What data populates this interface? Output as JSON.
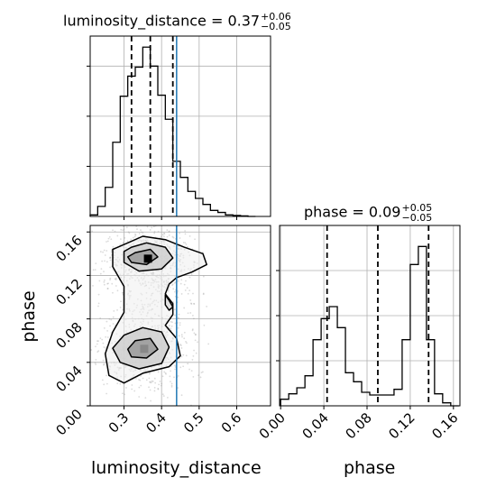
{
  "titles": {
    "lum": {
      "main": "luminosity_distance = 0.37",
      "up": "+0.06",
      "down": "−0.05"
    },
    "phase": {
      "main": "phase = 0.09",
      "up": "+0.05",
      "down": "−0.05"
    }
  },
  "labels": {
    "x_left": "luminosity_distance",
    "x_right": "phase",
    "y_left": "phase"
  },
  "colors": {
    "truth": "#1f77b4",
    "line": "#000000",
    "grid": "#b0b0b0",
    "density": "#999999"
  },
  "chart_data": [
    {
      "type": "histogram",
      "name": "luminosity_distance marginal",
      "x_range": [
        0.21,
        0.69
      ],
      "bin_edges": [
        0.21,
        0.23,
        0.25,
        0.27,
        0.29,
        0.31,
        0.33,
        0.35,
        0.37,
        0.39,
        0.41,
        0.43,
        0.45,
        0.47,
        0.49,
        0.51,
        0.53,
        0.55,
        0.57,
        0.59,
        0.61,
        0.63,
        0.65
      ],
      "counts": [
        0.3,
        2.0,
        5.8,
        14.8,
        24.0,
        28.0,
        29.8,
        33.8,
        30.0,
        24.2,
        19.4,
        11.0,
        7.8,
        5.0,
        3.6,
        2.4,
        1.2,
        0.8,
        0.3,
        0.2,
        0.1,
        0
      ],
      "ymax": 36,
      "median": 0.37,
      "quantiles": [
        0.32,
        0.37,
        0.43
      ],
      "truth": 0.44,
      "xticks": [
        0.3,
        0.4,
        0.5,
        0.6
      ]
    },
    {
      "type": "histogram",
      "name": "phase marginal",
      "x_range": [
        -0.001,
        0.166
      ],
      "bin_edges": [
        0.0,
        0.0075,
        0.015,
        0.0225,
        0.03,
        0.0375,
        0.045,
        0.0525,
        0.06,
        0.0675,
        0.075,
        0.0825,
        0.09,
        0.0975,
        0.105,
        0.1125,
        0.12,
        0.1275,
        0.135,
        0.1425,
        0.15,
        0.1575,
        0.165
      ],
      "counts": [
        2.2,
        4.0,
        6.0,
        10.0,
        22.0,
        29.0,
        33.0,
        26.0,
        11.0,
        8.0,
        4.5,
        3.6,
        3.6,
        3.6,
        5.5,
        22.0,
        47.0,
        53.0,
        22.0,
        4.0,
        1.0,
        0
      ],
      "ymax": 60,
      "median": 0.09,
      "quantiles": [
        0.043,
        0.09,
        0.137
      ],
      "xticks": [
        0.0,
        0.04,
        0.08,
        0.12,
        0.16
      ],
      "xtick_labels": [
        "0.00",
        "0.04",
        "0.08",
        "0.12",
        "0.16"
      ]
    },
    {
      "type": "scatter",
      "name": "luminosity_distance vs phase 2D posterior",
      "x_range": [
        0.21,
        0.69
      ],
      "y_range": [
        0.0,
        0.166
      ],
      "xlabel": "luminosity_distance",
      "ylabel": "phase",
      "xticks": [
        0.3,
        0.4,
        0.5,
        0.6
      ],
      "yticks": [
        0.0,
        0.04,
        0.08,
        0.12,
        0.16
      ],
      "ytick_labels": [
        "0.00",
        "0.04",
        "0.08",
        "0.12",
        "0.16"
      ],
      "truth_x": 0.44,
      "density_modes": [
        {
          "x": 0.36,
          "y": 0.135,
          "sx": 0.035,
          "sy": 0.01,
          "weight": 1.0
        },
        {
          "x": 0.35,
          "y": 0.052,
          "sx": 0.035,
          "sy": 0.012,
          "weight": 0.9
        },
        {
          "x": 0.39,
          "y": 0.095,
          "sx": 0.04,
          "sy": 0.02,
          "weight": 0.3
        }
      ],
      "contours": [
        [
          [
            0.31,
            0.15
          ],
          [
            0.35,
            0.156
          ],
          [
            0.41,
            0.153
          ],
          [
            0.46,
            0.146
          ],
          [
            0.51,
            0.14
          ],
          [
            0.52,
            0.13
          ],
          [
            0.48,
            0.123
          ],
          [
            0.44,
            0.118
          ],
          [
            0.42,
            0.112
          ],
          [
            0.41,
            0.103
          ],
          [
            0.43,
            0.094
          ],
          [
            0.43,
            0.084
          ],
          [
            0.41,
            0.074
          ],
          [
            0.44,
            0.062
          ],
          [
            0.45,
            0.046
          ],
          [
            0.42,
            0.036
          ],
          [
            0.35,
            0.03
          ],
          [
            0.3,
            0.021
          ],
          [
            0.26,
            0.028
          ],
          [
            0.25,
            0.048
          ],
          [
            0.27,
            0.068
          ],
          [
            0.3,
            0.086
          ],
          [
            0.3,
            0.11
          ],
          [
            0.27,
            0.128
          ],
          [
            0.27,
            0.144
          ]
        ],
        [
          [
            0.32,
            0.146
          ],
          [
            0.36,
            0.15
          ],
          [
            0.41,
            0.146
          ],
          [
            0.43,
            0.136
          ],
          [
            0.4,
            0.126
          ],
          [
            0.34,
            0.124
          ],
          [
            0.3,
            0.132
          ],
          [
            0.3,
            0.142
          ]
        ],
        [
          [
            0.33,
            0.141
          ],
          [
            0.37,
            0.144
          ],
          [
            0.39,
            0.137
          ],
          [
            0.36,
            0.13
          ],
          [
            0.32,
            0.132
          ],
          [
            0.31,
            0.137
          ]
        ],
        [
          [
            0.3,
            0.065
          ],
          [
            0.35,
            0.072
          ],
          [
            0.4,
            0.068
          ],
          [
            0.42,
            0.054
          ],
          [
            0.4,
            0.039
          ],
          [
            0.34,
            0.034
          ],
          [
            0.29,
            0.04
          ],
          [
            0.27,
            0.053
          ]
        ],
        [
          [
            0.33,
            0.06
          ],
          [
            0.37,
            0.062
          ],
          [
            0.39,
            0.052
          ],
          [
            0.36,
            0.044
          ],
          [
            0.32,
            0.045
          ],
          [
            0.31,
            0.052
          ]
        ],
        [
          [
            0.41,
            0.102
          ],
          [
            0.42,
            0.097
          ],
          [
            0.43,
            0.091
          ],
          [
            0.42,
            0.088
          ],
          [
            0.41,
            0.093
          ]
        ]
      ]
    }
  ]
}
